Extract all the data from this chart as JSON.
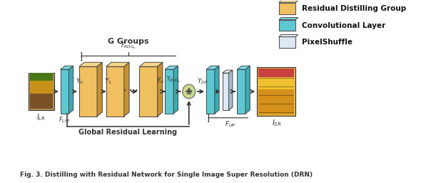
{
  "fig_width": 5.9,
  "fig_height": 2.56,
  "dpi": 100,
  "bg_color": "#ffffff",
  "teal_color": "#5ec8d2",
  "teal_dark": "#3aabb5",
  "teal_top": "#7adce6",
  "yellow_color": "#f0c060",
  "yellow_dark": "#c89030",
  "yellow_top": "#f8d888",
  "lavender_color": "#dde8f5",
  "lavender_dark": "#aabbd0",
  "lavender_top": "#eef3fa",
  "edge_color": "#444444",
  "arrow_color": "#333333",
  "legend_items": [
    {
      "label": "Residual Distilling Group",
      "color": "#f0c060",
      "dark": "#c89030",
      "top": "#f8d888"
    },
    {
      "label": "Convolutional Layer",
      "color": "#5ec8d2",
      "dark": "#3aabb5",
      "top": "#7adce6"
    },
    {
      "label": "PixelShuffle",
      "color": "#dde8f5",
      "dark": "#aabbd0",
      "top": "#eef3fa"
    }
  ],
  "caption": "Fig. 3. Distilling with Residual Network for Single Image Super Resolution (DRN)",
  "g_groups_label": "G Groups",
  "f_rdg_label": "$F_{RDG_n}$",
  "f_lfe_label": "$F_{LFE}$",
  "f_up_label": "$F_{UP}$",
  "global_residual_label": "Global Residual Learning",
  "y_labels": [
    "$Y_0$",
    "$Y_1$",
    "$Y_n$",
    "$Y_{RDG_n}$",
    "$Y_{DF}$"
  ],
  "i_lr_label": "$I_{LR}$",
  "i_sr_label": "$I_{SR}$"
}
